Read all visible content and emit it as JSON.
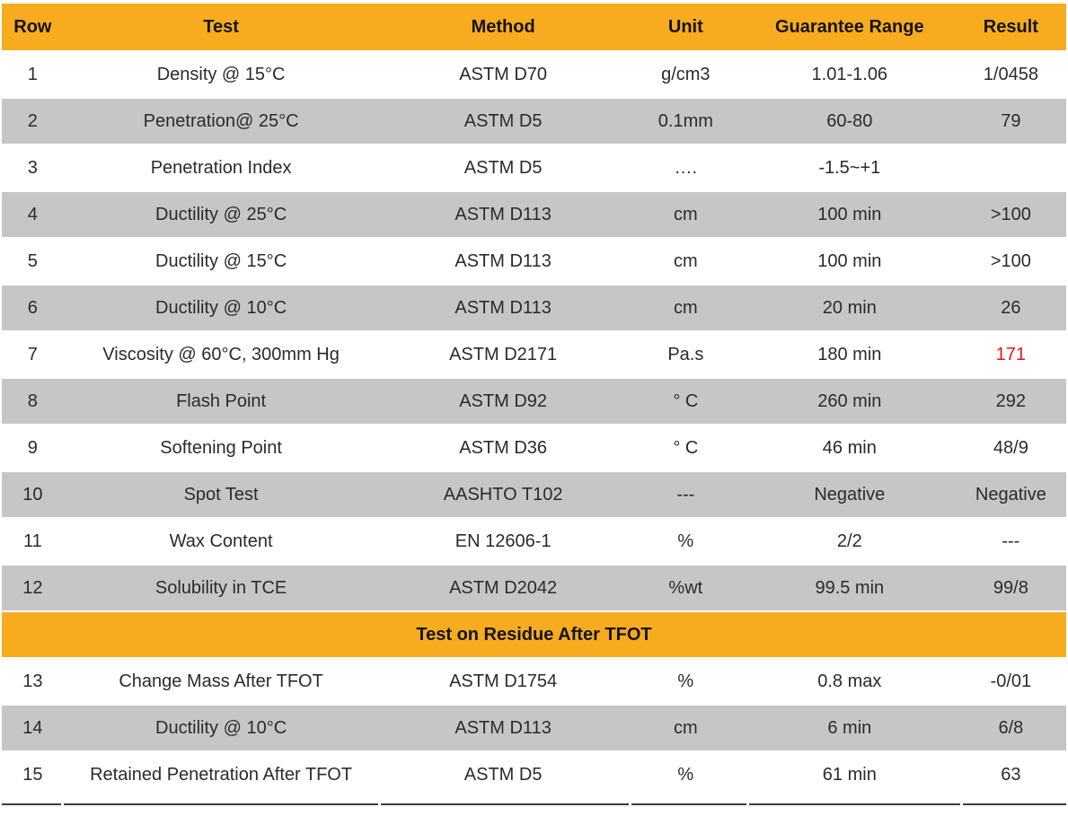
{
  "colors": {
    "header_orange": "#F7AC1F",
    "shaded_row_gray": "#C6C6C6",
    "body_text": "#2b2b2b",
    "heading_text": "#151310",
    "alert_red": "#F21111",
    "bottom_rule": "#3d3d3d"
  },
  "table": {
    "columns": [
      "Row",
      "Test",
      "Method",
      "Unit",
      "Guarantee Range",
      "Result"
    ],
    "rows": [
      {
        "row": "1",
        "test": "Density @ 15°C",
        "method": "ASTM D70",
        "unit": "g/cm3",
        "range": "1.01-1.06",
        "result": "1/0458",
        "shaded": false
      },
      {
        "row": "2",
        "test": "Penetration@ 25°C",
        "method": "ASTM D5",
        "unit": "0.1mm",
        "range": "60-80",
        "result": "79",
        "shaded": true
      },
      {
        "row": "3",
        "test": "Penetration Index",
        "method": "ASTM D5",
        "unit": "….",
        "range": "-1.5~+1",
        "result": "",
        "shaded": false
      },
      {
        "row": "4",
        "test": "Ductility @ 25°C",
        "method": "ASTM D113",
        "unit": "cm",
        "range": "100 min",
        "result": ">100",
        "shaded": true
      },
      {
        "row": "5",
        "test": "Ductility @ 15°C",
        "method": "ASTM D113",
        "unit": "cm",
        "range": "100 min",
        "result": ">100",
        "shaded": false
      },
      {
        "row": "6",
        "test": "Ductility @ 10°C",
        "method": "ASTM D113",
        "unit": "cm",
        "range": "20 min",
        "result": "26",
        "shaded": true
      },
      {
        "row": "7",
        "test": "Viscosity @ 60°C, 300mm Hg",
        "method": "ASTM D2171",
        "unit": "Pa.s",
        "range": "180 min",
        "result": "171",
        "shaded": false,
        "alert": true
      },
      {
        "row": "8",
        "test": "Flash Point",
        "method": "ASTM D92",
        "unit": "° C",
        "range": "260 min",
        "result": "292",
        "shaded": true
      },
      {
        "row": "9",
        "test": "Softening Point",
        "method": "ASTM D36",
        "unit": "° C",
        "range": "46 min",
        "result": "48/9",
        "shaded": false
      },
      {
        "row": "10",
        "test": "Spot Test",
        "method": "AASHTO T102",
        "unit": "---",
        "range": "Negative",
        "result": "Negative",
        "shaded": true
      },
      {
        "row": "11",
        "test": "Wax Content",
        "method": "EN 12606-1",
        "unit": "%",
        "range": "2/2",
        "result": "---",
        "shaded": false
      },
      {
        "row": "12",
        "test": "Solubility in TCE",
        "method": "ASTM D2042",
        "unit": "%wt",
        "range": "99.5 min",
        "result": "99/8",
        "shaded": true
      },
      {
        "section": "Test on Residue After TFOT"
      },
      {
        "row": "13",
        "test": "Change Mass After TFOT",
        "method": "ASTM D1754",
        "unit": "%",
        "range": "0.8 max",
        "result": "-0/01",
        "shaded": false
      },
      {
        "row": "14",
        "test": "Ductility @ 10°C",
        "method": "ASTM D113",
        "unit": "cm",
        "range": "6 min",
        "result": "6/8",
        "shaded": true
      },
      {
        "row": "15",
        "test": "Retained Penetration After TFOT",
        "method": "ASTM D5",
        "unit": "%",
        "range": "61 min",
        "result": "63",
        "shaded": false
      }
    ]
  }
}
